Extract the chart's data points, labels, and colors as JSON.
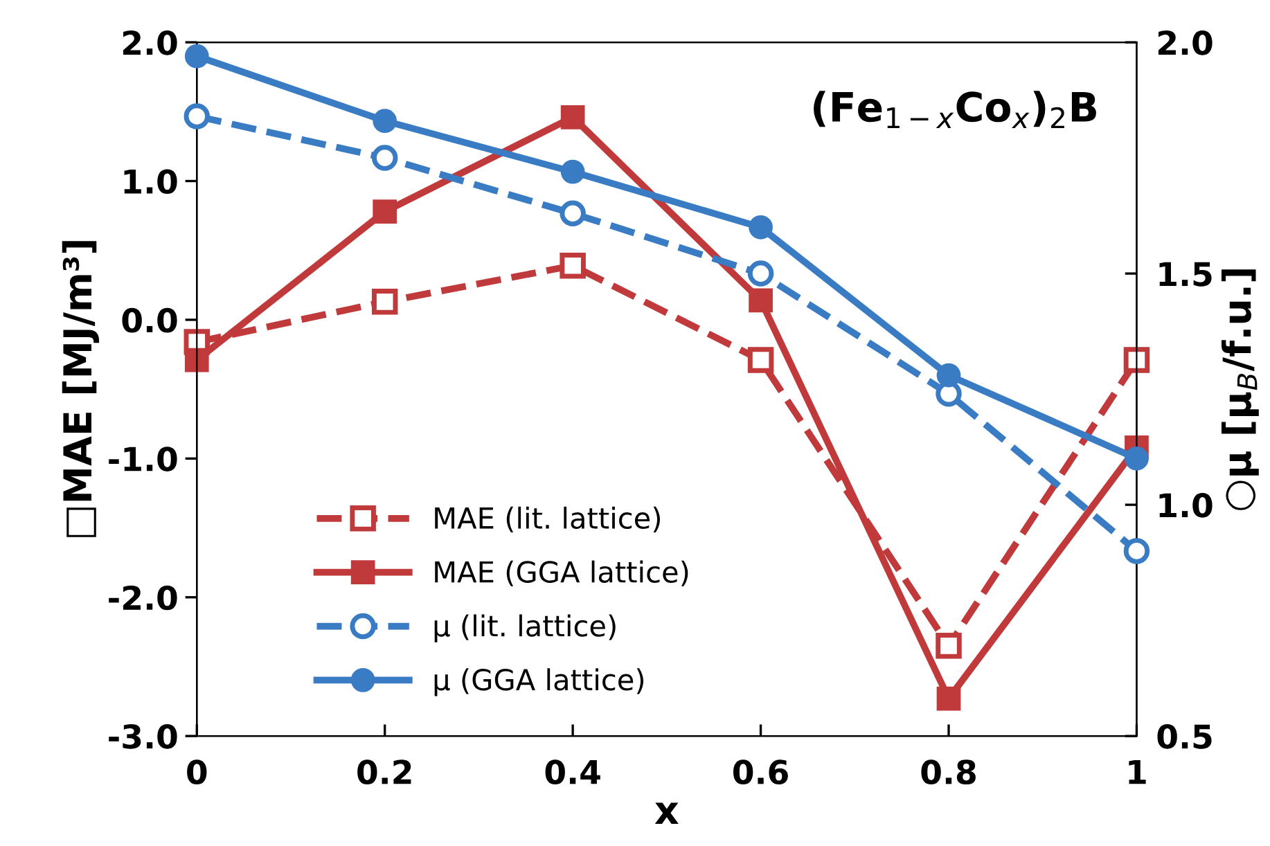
{
  "chart_data": {
    "type": "line",
    "xlabel": "x",
    "ylabel": "□MAE [MJ/m³]",
    "y2label": "○μ [μ$_{B}$/f.u.]",
    "annotations": [
      "(Fe$_{1−x}$Co$_{x}$)$_{2}$B"
    ],
    "x": [
      0,
      0.2,
      0.4,
      0.6,
      0.8,
      1
    ],
    "xlim": [
      0,
      1
    ],
    "xticks": [
      0,
      0.2,
      0.4,
      0.6,
      0.8,
      1
    ],
    "ylim": [
      -3,
      2
    ],
    "yticks": [
      {
        "value": -3,
        "label": "-3.0"
      },
      {
        "value": -2,
        "label": "-2.0"
      },
      {
        "value": -1,
        "label": "-1.0"
      },
      {
        "value": 0,
        "label": "0.0"
      },
      {
        "value": 1,
        "label": "1.0"
      },
      {
        "value": 2,
        "label": "2.0"
      }
    ],
    "y2lim": [
      0.5,
      2
    ],
    "y2ticks": [
      0.5,
      {
        "value": 1,
        "label": "1.0"
      },
      1.5,
      {
        "value": 2,
        "label": "2.0"
      }
    ],
    "grid": false,
    "legend": "bottom left",
    "series": [
      {
        "name": "MAE (lit. lattice)",
        "color": "#c0393b",
        "marker": "square",
        "line_style": "dashed",
        "values": [
          -0.16,
          0.13,
          0.39,
          -0.29,
          -2.35,
          -0.29
        ]
      },
      {
        "name": "MAE (GGA lattice)",
        "color": "#c0393b",
        "marker": "square",
        "line_style": "solid",
        "values": [
          -0.29,
          0.78,
          1.46,
          0.14,
          -2.73,
          -0.92
        ]
      },
      {
        "name": "μ (lit. lattice)",
        "color": "#3a7cc4",
        "marker": "circle",
        "line_style": "dashed",
        "axis": "y2",
        "values": [
          1.84,
          1.75,
          1.63,
          1.5,
          1.24,
          0.9
        ]
      },
      {
        "name": "μ (GGA lattice)",
        "color": "#3a7cc4",
        "marker": "circle",
        "line_style": "solid",
        "axis": "y2",
        "values": [
          1.97,
          1.83,
          1.72,
          1.6,
          1.28,
          1.1
        ]
      }
    ]
  }
}
